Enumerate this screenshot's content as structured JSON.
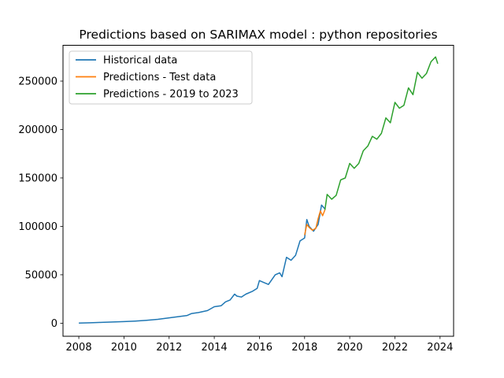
{
  "chart_data": {
    "type": "line",
    "title": "Predictions based on SARIMAX model : python repositories",
    "xlabel": "",
    "ylabel": "",
    "xlim": [
      2007.3,
      2024.6
    ],
    "ylim": [
      -13500,
      287000
    ],
    "x_ticks": [
      2008,
      2010,
      2012,
      2014,
      2016,
      2018,
      2020,
      2022,
      2024
    ],
    "x_tick_labels": [
      "2008",
      "2010",
      "2012",
      "2014",
      "2016",
      "2018",
      "2020",
      "2022",
      "2024"
    ],
    "y_ticks": [
      0,
      50000,
      100000,
      150000,
      200000,
      250000
    ],
    "y_tick_labels": [
      "0",
      "50000",
      "100000",
      "150000",
      "200000",
      "250000"
    ],
    "grid": false,
    "legend_position": "top-left",
    "series": [
      {
        "name": "Historical data",
        "color": "#1f77b4",
        "x": [
          2008.0,
          2008.5,
          2009.0,
          2009.5,
          2010.0,
          2010.5,
          2011.0,
          2011.5,
          2012.0,
          2012.5,
          2012.8,
          2013.0,
          2013.3,
          2013.5,
          2013.7,
          2014.0,
          2014.3,
          2014.5,
          2014.7,
          2014.9,
          2015.0,
          2015.2,
          2015.4,
          2015.7,
          2015.9,
          2016.0,
          2016.2,
          2016.4,
          2016.7,
          2016.9,
          2017.0,
          2017.2,
          2017.4,
          2017.6,
          2017.8,
          2018.0,
          2018.1,
          2018.2,
          2018.4,
          2018.6,
          2018.75,
          2018.9
        ],
        "y": [
          200,
          400,
          800,
          1200,
          1600,
          2200,
          3000,
          4000,
          5500,
          7000,
          8000,
          10000,
          11000,
          12000,
          13000,
          17000,
          18000,
          22000,
          24000,
          30000,
          28000,
          27000,
          30000,
          33000,
          36000,
          44000,
          42000,
          40000,
          50000,
          52000,
          48000,
          68000,
          65000,
          70000,
          85000,
          88000,
          107000,
          100000,
          95000,
          102000,
          122000,
          118000
        ]
      },
      {
        "name": "Predictions - Test data",
        "color": "#ff7f0e",
        "x": [
          2018.0,
          2018.1,
          2018.2,
          2018.35,
          2018.5,
          2018.6,
          2018.7,
          2018.8,
          2018.9
        ],
        "y": [
          91000,
          102000,
          99000,
          96000,
          98000,
          108000,
          116000,
          111000,
          117000
        ]
      },
      {
        "name": "Predictions - 2019 to 2023",
        "color": "#2ca02c",
        "x": [
          2018.9,
          2019.0,
          2019.2,
          2019.4,
          2019.6,
          2019.8,
          2020.0,
          2020.2,
          2020.4,
          2020.6,
          2020.8,
          2021.0,
          2021.2,
          2021.4,
          2021.6,
          2021.8,
          2022.0,
          2022.2,
          2022.4,
          2022.6,
          2022.8,
          2023.0,
          2023.2,
          2023.4,
          2023.6,
          2023.8,
          2023.9
        ],
        "y": [
          117000,
          133000,
          128000,
          132000,
          148000,
          150000,
          165000,
          160000,
          165000,
          178000,
          183000,
          193000,
          190000,
          196000,
          212000,
          207000,
          228000,
          222000,
          225000,
          243000,
          236000,
          259000,
          253000,
          258000,
          270000,
          275000,
          268000
        ]
      }
    ]
  }
}
